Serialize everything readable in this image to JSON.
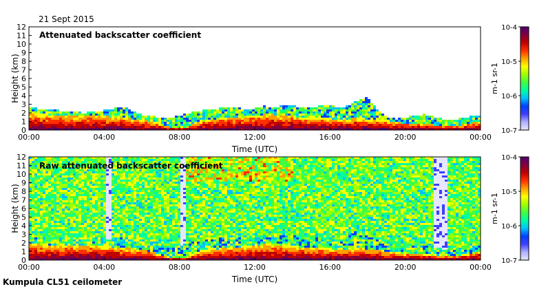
{
  "header": {
    "date": "21 Sept 2015"
  },
  "footer": {
    "site": "Kumpula CL51 ceilometer"
  },
  "chart_data": [
    {
      "type": "heatmap",
      "title": "Attenuated backscatter coefficient",
      "xlabel": "Time (UTC)",
      "ylabel": "Height (km)",
      "xticks": [
        "00:00",
        "04:00",
        "08:00",
        "12:00",
        "16:00",
        "20:00",
        "00:00"
      ],
      "yticks": [
        "0",
        "1",
        "2",
        "3",
        "4",
        "5",
        "6",
        "7",
        "8",
        "9",
        "10",
        "11",
        "12"
      ],
      "xlim_hours": [
        0,
        24
      ],
      "ylim_km": [
        0,
        12
      ],
      "colorbar": {
        "label": "m-1 sr-1",
        "scale": "log",
        "min": 1e-07,
        "max": 0.0001,
        "ticks": [
          "10-7",
          "10-6",
          "10-5",
          "10-4"
        ]
      },
      "profile": {
        "hours": [
          0,
          1,
          2,
          3,
          4,
          4.5,
          5,
          5.5,
          6,
          6.5,
          7,
          7.5,
          8,
          8.5,
          9,
          9.5,
          10,
          10.5,
          11,
          11.5,
          12,
          12.5,
          13,
          13.5,
          14,
          14.5,
          15,
          15.5,
          16,
          16.5,
          17,
          17.5,
          18,
          18.5,
          19,
          19.5,
          20,
          20.5,
          21,
          21.5,
          22,
          22.5,
          23,
          23.5,
          24
        ],
        "boundary_layer_top_km": [
          1.9,
          1.8,
          1.7,
          1.7,
          1.6,
          1.5,
          1.4,
          1.3,
          1.2,
          1.0,
          0.6,
          0.3,
          0.2,
          0.4,
          0.9,
          1.2,
          1.3,
          1.4,
          1.5,
          1.6,
          1.7,
          1.8,
          1.8,
          1.7,
          1.6,
          1.5,
          1.5,
          1.4,
          1.3,
          1.2,
          1.3,
          1.4,
          1.3,
          1.2,
          1.0,
          0.9,
          0.8,
          0.8,
          0.7,
          0.6,
          0.5,
          0.5,
          0.6,
          0.8,
          1.0
        ],
        "cloud_top_km": [
          2.6,
          2.4,
          2.2,
          2.0,
          2.3,
          2.5,
          2.8,
          2.2,
          1.8,
          1.6,
          1.5,
          1.4,
          1.7,
          2.0,
          2.2,
          2.4,
          2.5,
          2.6,
          2.6,
          2.4,
          2.5,
          2.8,
          2.6,
          2.9,
          2.8,
          2.7,
          2.6,
          2.8,
          3.0,
          2.6,
          2.9,
          3.4,
          3.8,
          2.4,
          1.6,
          1.3,
          1.5,
          1.7,
          1.8,
          1.6,
          1.3,
          1.2,
          1.4,
          1.6,
          1.8
        ]
      }
    },
    {
      "type": "heatmap",
      "title": "Raw attenuated backscatter coefficient",
      "xlabel": "Time (UTC)",
      "ylabel": "Height (km)",
      "xticks": [
        "00:00",
        "04:00",
        "08:00",
        "12:00",
        "16:00",
        "20:00",
        "00:00"
      ],
      "yticks": [
        "0",
        "1",
        "2",
        "3",
        "4",
        "5",
        "6",
        "7",
        "8",
        "9",
        "10",
        "11",
        "12"
      ],
      "xlim_hours": [
        0,
        24
      ],
      "ylim_km": [
        0,
        12
      ],
      "colorbar": {
        "label": "m-1 sr-1",
        "scale": "log",
        "min": 1e-07,
        "max": 0.0001,
        "ticks": [
          "10-7",
          "10-6",
          "10-5",
          "10-4"
        ]
      },
      "noise_gap_hours": [
        4.2,
        8.2,
        21.5,
        22.3
      ]
    }
  ],
  "colors": {
    "colormap": [
      "#e6e6ff",
      "#b0b0ff",
      "#4040ff",
      "#0040ff",
      "#00c0ff",
      "#00ffa0",
      "#40ff40",
      "#a0ff00",
      "#ffff00",
      "#ffa000",
      "#ff3000",
      "#c00000",
      "#800040",
      "#500070"
    ]
  }
}
